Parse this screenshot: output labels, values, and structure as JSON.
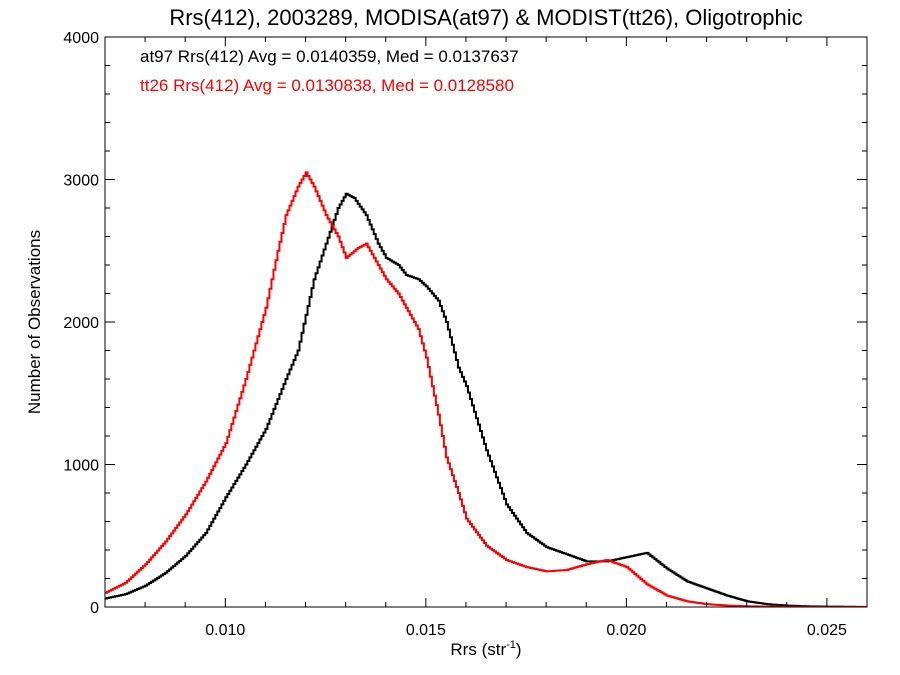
{
  "chart_data": {
    "type": "line",
    "title": "Rrs(412), 2003289, MODISA(at97) & MODIST(tt26), Oligotrophic",
    "xlabel": "Rrs (str",
    "xlabel_sup": "-1",
    "xlabel_suffix": ")",
    "ylabel": "Number of Observations",
    "xlim": [
      0.007,
      0.026
    ],
    "ylim": [
      0,
      4000
    ],
    "x_ticks": [
      0.01,
      0.015,
      0.02,
      0.025
    ],
    "x_tick_labels": [
      "0.010",
      "0.015",
      "0.020",
      "0.025"
    ],
    "y_ticks": [
      0,
      1000,
      2000,
      3000,
      4000
    ],
    "y_tick_labels": [
      "0",
      "1000",
      "2000",
      "3000",
      "4000"
    ],
    "grid": false,
    "legend_placement": "top-left",
    "series": [
      {
        "name": "at97",
        "legend": "at97 Rrs(412) Avg = 0.0140359, Med = 0.0137637",
        "color": "#000000",
        "x": [
          0.007,
          0.0075,
          0.008,
          0.0085,
          0.009,
          0.0095,
          0.01,
          0.0105,
          0.011,
          0.0115,
          0.0118,
          0.012,
          0.0122,
          0.0125,
          0.0128,
          0.013,
          0.0132,
          0.0135,
          0.0138,
          0.014,
          0.0143,
          0.0145,
          0.0148,
          0.015,
          0.0153,
          0.0155,
          0.0158,
          0.016,
          0.0165,
          0.017,
          0.0175,
          0.018,
          0.0185,
          0.019,
          0.0195,
          0.02,
          0.0205,
          0.021,
          0.0215,
          0.022,
          0.0225,
          0.023,
          0.0235,
          0.024,
          0.0245,
          0.025,
          0.0255,
          0.026
        ],
        "y": [
          60,
          90,
          150,
          240,
          360,
          520,
          770,
          1000,
          1250,
          1600,
          1800,
          2050,
          2300,
          2550,
          2800,
          2900,
          2870,
          2750,
          2550,
          2450,
          2400,
          2330,
          2300,
          2250,
          2150,
          2000,
          1680,
          1550,
          1100,
          720,
          520,
          420,
          370,
          320,
          320,
          350,
          380,
          270,
          180,
          130,
          80,
          40,
          20,
          10,
          5,
          3,
          2,
          0
        ]
      },
      {
        "name": "tt26",
        "legend": "tt26 Rrs(412) Avg = 0.0130838, Med = 0.0128580",
        "color": "#ff0000",
        "x": [
          0.007,
          0.0075,
          0.008,
          0.0085,
          0.009,
          0.0095,
          0.01,
          0.0105,
          0.011,
          0.0113,
          0.0115,
          0.0118,
          0.012,
          0.0122,
          0.0125,
          0.0128,
          0.013,
          0.0133,
          0.0135,
          0.0138,
          0.014,
          0.0143,
          0.0145,
          0.0148,
          0.015,
          0.0153,
          0.0155,
          0.0158,
          0.016,
          0.0165,
          0.017,
          0.0175,
          0.018,
          0.0185,
          0.019,
          0.0195,
          0.02,
          0.0205,
          0.021,
          0.0215,
          0.022,
          0.0225,
          0.023,
          0.0235,
          0.024,
          0.0245,
          0.025,
          0.0255,
          0.026
        ],
        "y": [
          100,
          170,
          300,
          460,
          650,
          880,
          1150,
          1600,
          2100,
          2500,
          2750,
          2950,
          3050,
          2950,
          2750,
          2600,
          2450,
          2520,
          2550,
          2400,
          2300,
          2200,
          2100,
          1950,
          1750,
          1350,
          1050,
          800,
          620,
          430,
          330,
          280,
          250,
          260,
          300,
          330,
          280,
          160,
          80,
          40,
          20,
          10,
          5,
          3,
          2,
          1,
          1,
          0,
          0
        ]
      }
    ]
  }
}
